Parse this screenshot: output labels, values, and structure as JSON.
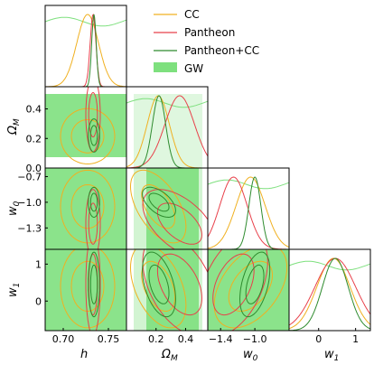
{
  "chart_data": {
    "type": "corner",
    "parameters": [
      {
        "label": "h",
        "range": [
          0.68,
          0.77
        ],
        "ticks": [
          "0.70",
          "0.75"
        ]
      },
      {
        "label": "Ω_M",
        "range": [
          0.0,
          0.55
        ],
        "ticks": [
          "0.0",
          "0.2",
          "0.4"
        ]
      },
      {
        "label": "w_0",
        "range": [
          -1.55,
          -0.6
        ],
        "ticks": [
          "-1.3",
          "-1.0",
          "-0.7"
        ]
      },
      {
        "label": "w_1",
        "range": [
          -0.8,
          1.4
        ],
        "ticks": [
          "0",
          "1"
        ]
      }
    ],
    "xtick_labels": [
      [
        "0.70",
        "0.75"
      ],
      [
        "0.2",
        "0.4"
      ],
      [
        "-1.4",
        "-1.0"
      ],
      [
        "0",
        "1"
      ]
    ],
    "ytick_labels": {
      "Ω_M": [
        "0.0",
        "0.2",
        "0.4"
      ],
      "w_0": [
        "-1.3",
        "-1.0",
        "-0.7"
      ],
      "w_1": [
        "0",
        "1"
      ]
    },
    "legend_position": "top-right",
    "series": [
      {
        "name": "CC",
        "color": "#f0b020",
        "posterior": {
          "h": {
            "mean": 0.727,
            "sigma": 0.012
          },
          "Ω_M": {
            "mean": 0.215,
            "sigma": 0.075
          },
          "w_0": {
            "mean": -1.05,
            "sigma": 0.17
          },
          "w_1": {
            "mean": 0.4,
            "sigma": 0.45
          }
        }
      },
      {
        "name": "Pantheon",
        "color": "#e8404a",
        "posterior": {
          "h": {
            "mean": 0.733,
            "sigma": 0.0032
          },
          "Ω_M": {
            "mean": 0.36,
            "sigma": 0.1
          },
          "w_0": {
            "mean": -1.25,
            "sigma": 0.16
          },
          "w_1": {
            "mean": 0.45,
            "sigma": 0.55
          }
        }
      },
      {
        "name": "Pantheon+CC",
        "color": "#2e8b2e",
        "posterior": {
          "h": {
            "mean": 0.734,
            "sigma": 0.0025
          },
          "Ω_M": {
            "mean": 0.22,
            "sigma": 0.045
          },
          "w_0": {
            "mean": -1.0,
            "sigma": 0.07
          },
          "w_1": {
            "mean": 0.45,
            "sigma": 0.35
          }
        }
      },
      {
        "name": "GW",
        "color": "#7ee07e",
        "type": "filled-region"
      }
    ]
  }
}
